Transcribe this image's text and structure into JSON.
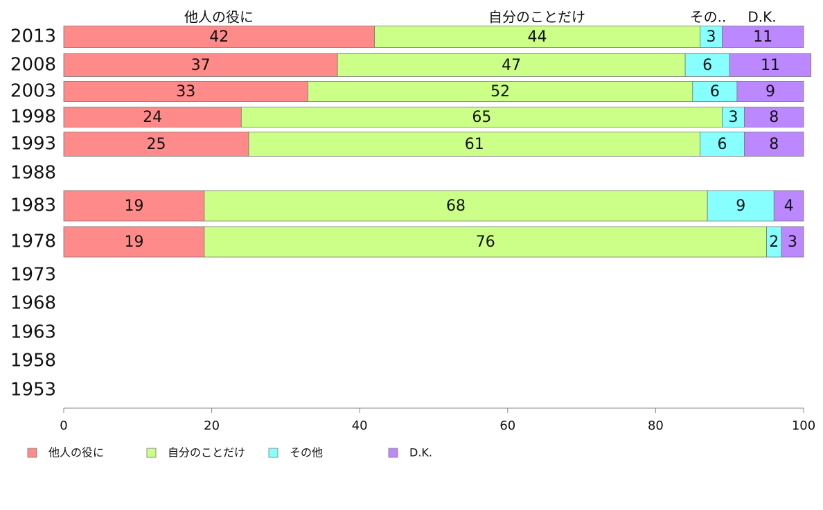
{
  "chart_data": {
    "type": "bar",
    "orientation": "horizontal",
    "stacked": true,
    "categories": [
      "2013",
      "2008",
      "2003",
      "1998",
      "1993",
      "1988",
      "1983",
      "1978",
      "1973",
      "1968",
      "1963",
      "1958",
      "1953"
    ],
    "series": [
      {
        "name": "他人の役に",
        "header": "他人の役に",
        "color": "#ff8a8a",
        "values": [
          42,
          37,
          33,
          24,
          25,
          null,
          19,
          19,
          null,
          null,
          null,
          null,
          null
        ]
      },
      {
        "name": "自分のことだけ",
        "header": "自分のことだけ",
        "color": "#ccff88",
        "values": [
          44,
          47,
          52,
          65,
          61,
          null,
          68,
          76,
          null,
          null,
          null,
          null,
          null
        ]
      },
      {
        "name": "その他",
        "header": "その..",
        "color": "#88ffff",
        "values": [
          3,
          6,
          6,
          3,
          6,
          null,
          9,
          2,
          null,
          null,
          null,
          null,
          null
        ]
      },
      {
        "name": "D.K.",
        "header": "D.K.",
        "color": "#bb88ff",
        "values": [
          11,
          11,
          9,
          8,
          8,
          null,
          4,
          3,
          null,
          null,
          null,
          null,
          null
        ]
      }
    ],
    "xlim": [
      0,
      100
    ],
    "x_ticks": [
      "0",
      "20",
      "40",
      "60",
      "80",
      "100"
    ],
    "title": "",
    "xlabel": "",
    "ylabel": "",
    "legend_position": "bottom",
    "grid": false
  }
}
